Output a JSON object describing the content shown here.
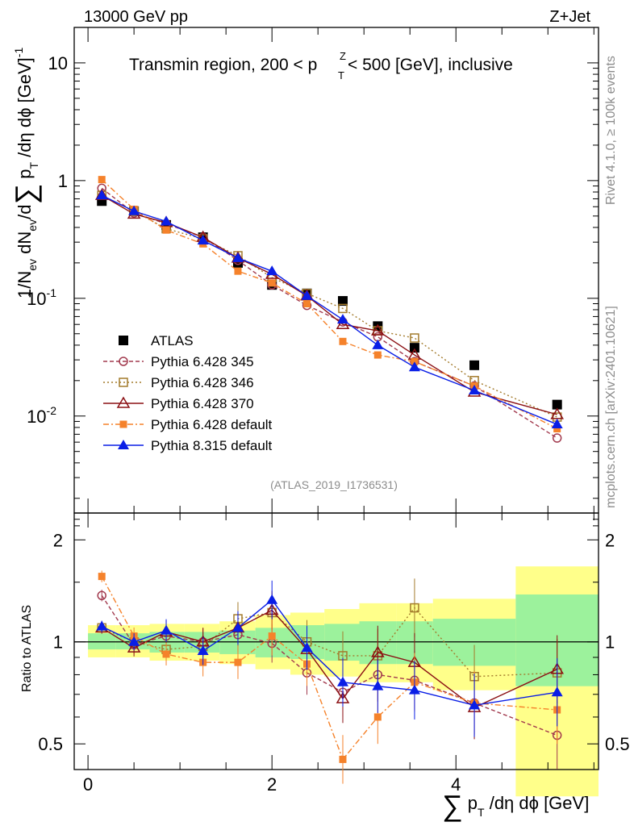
{
  "header": {
    "energy_label": "13000 GeV pp",
    "process_label": "Z+Jet",
    "plot_title": "Transmin region, 200 < p",
    "plot_title_sup": "Z",
    "plot_title_sub": "T",
    "plot_title_rest": " < 500 [GeV], inclusive",
    "watermark": "(ATLAS_2019_I1736531)",
    "side_text_rivet": "Rivet 4.1.0, ≥ 100k events",
    "side_text_mcplots": "mcplots.cern.ch [arXiv:2401.10621]"
  },
  "axes": {
    "ylabel_main": "1/N_ev dN_ev/d ∑ p_T /dη dϕ [GeV]^-1",
    "ylabel_ratio": "Ratio to ATLAS",
    "xlabel": "∑ p_T /dη dϕ [GeV]",
    "main_ticks": [
      {
        "base": "10",
        "exp": "-2"
      },
      {
        "base": "10",
        "exp": "-1"
      },
      {
        "base": "1",
        "exp": ""
      },
      {
        "base": "10",
        "exp": ""
      }
    ],
    "ratio_ticks": [
      "0.5",
      "1",
      "2"
    ],
    "x_ticks": [
      "0",
      "2",
      "4"
    ]
  },
  "chart_data": [
    {
      "type": "line",
      "panel": "main",
      "yscale": "log",
      "xlim": [
        -0.15,
        5.55
      ],
      "ylim": [
        0.0015,
        20
      ],
      "x": [
        0.15,
        0.5,
        0.85,
        1.25,
        1.63,
        2.0,
        2.38,
        2.77,
        3.15,
        3.55,
        4.2,
        5.1
      ],
      "series": [
        {
          "name": "ATLAS",
          "style": "data",
          "color": "#000000",
          "values": [
            0.67,
            0.55,
            0.42,
            0.33,
            0.2,
            0.13,
            0.11,
            0.095,
            0.058,
            0.038,
            0.027,
            0.0125
          ]
        },
        {
          "name": "Pythia 6.428 345",
          "style": "open-circle",
          "color": "#a23a4e",
          "values": [
            0.86,
            0.53,
            0.43,
            0.33,
            0.21,
            0.13,
            0.087,
            0.063,
            0.047,
            0.029,
            0.018,
            0.0065
          ]
        },
        {
          "name": "Pythia 6.428 346",
          "style": "open-square",
          "color": "#a37b2c",
          "values": [
            0.75,
            0.55,
            0.39,
            0.32,
            0.23,
            0.15,
            0.11,
            0.082,
            0.053,
            0.046,
            0.02,
            0.0098
          ]
        },
        {
          "name": "Pythia 6.428 370",
          "style": "open-triangle",
          "color": "#8b1014",
          "values": [
            0.75,
            0.52,
            0.44,
            0.33,
            0.22,
            0.16,
            0.105,
            0.06,
            0.053,
            0.033,
            0.016,
            0.0103
          ]
        },
        {
          "name": "Pythia 6.428 default",
          "style": "filled-square",
          "color": "#f5822b",
          "values": [
            1.02,
            0.57,
            0.38,
            0.29,
            0.17,
            0.135,
            0.09,
            0.043,
            0.033,
            0.029,
            0.018,
            0.0078
          ]
        },
        {
          "name": "Pythia 8.315 default",
          "style": "filled-triangle",
          "color": "#0a1ee6",
          "values": [
            0.75,
            0.55,
            0.45,
            0.31,
            0.22,
            0.17,
            0.105,
            0.066,
            0.04,
            0.026,
            0.0165,
            0.0085
          ]
        }
      ]
    },
    {
      "type": "line",
      "panel": "ratio",
      "yscale": "log",
      "xlim": [
        -0.15,
        5.55
      ],
      "ylim": [
        0.42,
        2.4
      ],
      "x": [
        0.15,
        0.5,
        0.85,
        1.25,
        1.63,
        2.0,
        2.38,
        2.77,
        3.15,
        3.55,
        4.2,
        5.1
      ],
      "bin_edges": [
        0.0,
        0.3,
        0.67,
        1.05,
        1.43,
        1.82,
        2.2,
        2.57,
        2.95,
        3.35,
        3.75,
        4.65,
        5.55
      ],
      "band_green": [
        [
          0.95,
          1.06
        ],
        [
          0.95,
          1.06
        ],
        [
          0.93,
          1.07
        ],
        [
          0.93,
          1.07
        ],
        [
          0.92,
          1.08
        ],
        [
          0.9,
          1.1
        ],
        [
          0.89,
          1.12
        ],
        [
          0.88,
          1.13
        ],
        [
          0.86,
          1.15
        ],
        [
          0.86,
          1.15
        ],
        [
          0.85,
          1.17
        ],
        [
          0.74,
          1.38
        ]
      ],
      "band_yellow": [
        [
          0.9,
          1.12
        ],
        [
          0.9,
          1.12
        ],
        [
          0.88,
          1.13
        ],
        [
          0.88,
          1.13
        ],
        [
          0.86,
          1.15
        ],
        [
          0.83,
          1.2
        ],
        [
          0.8,
          1.22
        ],
        [
          0.79,
          1.25
        ],
        [
          0.76,
          1.3
        ],
        [
          0.76,
          1.3
        ],
        [
          0.72,
          1.34
        ],
        [
          0.35,
          1.67
        ]
      ],
      "series": [
        {
          "name": "Pythia 6.428 345",
          "values": [
            1.37,
            0.98,
            1.04,
            1.0,
            1.05,
            0.99,
            0.81,
            0.71,
            0.8,
            0.77,
            0.66,
            0.53
          ]
        },
        {
          "name": "Pythia 6.428 346",
          "values": [
            1.1,
            1.0,
            0.95,
            0.97,
            1.17,
            1.22,
            1.0,
            0.91,
            0.91,
            1.26,
            0.79,
            0.81
          ]
        },
        {
          "name": "Pythia 6.428 370",
          "values": [
            1.1,
            0.96,
            1.07,
            1.0,
            1.1,
            1.24,
            0.95,
            0.68,
            0.93,
            0.87,
            0.64,
            0.83
          ]
        },
        {
          "name": "Pythia 6.428 default",
          "values": [
            1.56,
            1.04,
            0.92,
            0.87,
            0.87,
            1.04,
            0.86,
            0.45,
            0.6,
            0.76,
            0.66,
            0.63
          ]
        },
        {
          "name": "Pythia 8.315 default",
          "values": [
            1.11,
            1.0,
            1.08,
            0.94,
            1.1,
            1.33,
            0.96,
            0.76,
            0.74,
            0.72,
            0.65,
            0.71
          ]
        }
      ],
      "reference_line": 1
    }
  ]
}
